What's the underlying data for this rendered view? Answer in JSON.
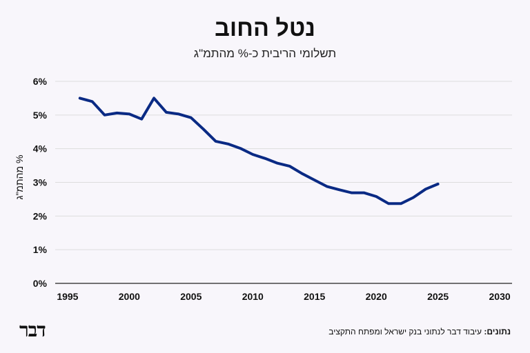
{
  "title": "נטל החוב",
  "subtitle": "תשלומי הריבית כ-% מהתמ\"ג",
  "footer": {
    "logo": "דבר",
    "source_label": "נתונים:",
    "source_text": "עיבוד דבר לנתוני בנק ישראל ומפתח התקציב"
  },
  "colors": {
    "line": "#0a2a84",
    "grid": "#dcdcdc",
    "background": "#f8f6fb"
  },
  "chart_data": {
    "type": "line",
    "title": "נטל החוב",
    "subtitle": "תשלומי הריבית כ-% מהתמ\"ג",
    "xlabel": "",
    "ylabel": "% מהתמ\"ג",
    "xlim": [
      1994,
      2031
    ],
    "ylim": [
      0,
      6
    ],
    "xticks": [
      1995,
      2000,
      2005,
      2010,
      2015,
      2020,
      2025,
      2030
    ],
    "yticks": [
      0,
      1,
      2,
      3,
      4,
      5,
      6
    ],
    "ytick_labels": [
      "0%",
      "1%",
      "2%",
      "3%",
      "4%",
      "5%",
      "6%"
    ],
    "grid": true,
    "legend": "none",
    "series": [
      {
        "x": [
          1996,
          1997,
          1998,
          1999,
          2000,
          2001,
          2002,
          2003,
          2004,
          2005,
          2006,
          2007,
          2008,
          2009,
          2010,
          2011,
          2012,
          2013,
          2014,
          2015,
          2016,
          2017,
          2018,
          2019,
          2020,
          2021,
          2022,
          2023,
          2024,
          2025,
          2026
        ],
        "values": [
          5.5,
          5.4,
          5.0,
          5.06,
          5.03,
          4.88,
          5.5,
          5.08,
          5.03,
          4.92,
          4.58,
          4.22,
          4.14,
          4.01,
          3.83,
          3.71,
          3.57,
          3.48,
          3.26,
          3.07,
          2.88,
          2.78,
          2.69,
          2.69,
          2.58,
          2.37,
          2.37,
          2.55,
          2.8,
          2.95,
          null
        ]
      }
    ]
  }
}
